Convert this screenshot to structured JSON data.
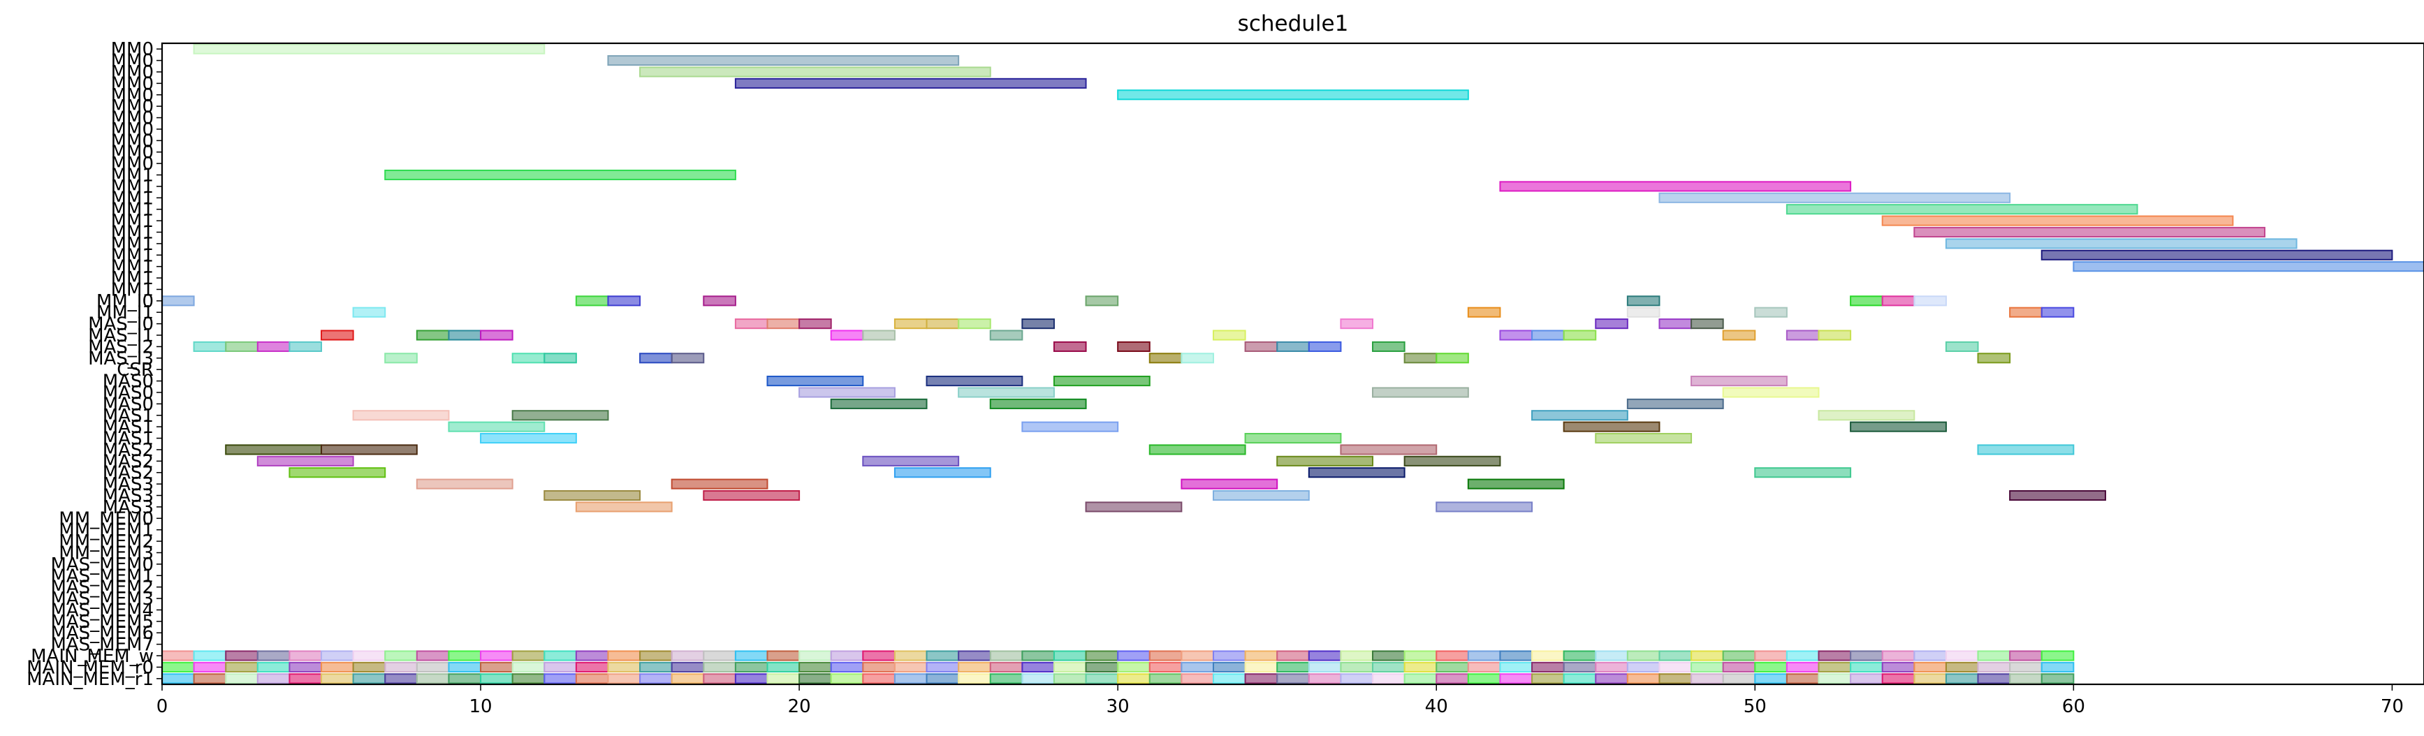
{
  "chart_data": {
    "type": "gantt",
    "title": "schedule1",
    "xlabel": "",
    "ylabel": "",
    "xlim": [
      0,
      71
    ],
    "xticks": [
      0,
      10,
      20,
      30,
      40,
      50,
      60,
      70
    ],
    "grid": false,
    "categories": [
      "MM0",
      "MM0",
      "MM0",
      "MM0",
      "MM0",
      "MM0",
      "MM0",
      "MM0",
      "MM0",
      "MM0",
      "MM0",
      "MM1",
      "MM1",
      "MM1",
      "MM1",
      "MM1",
      "MM1",
      "MM1",
      "MM1",
      "MM1",
      "MM1",
      "MM1",
      "MM_I0",
      "MM_I1",
      "MAS_I0",
      "MAS_I1",
      "MAS_I2",
      "MAS_I3",
      "CSR",
      "MAS0",
      "MAS0",
      "MAS0",
      "MAS1",
      "MAS1",
      "MAS1",
      "MAS2",
      "MAS2",
      "MAS2",
      "MAS3",
      "MAS3",
      "MAS3",
      "MM_MEM0",
      "MM_MEM1",
      "MM_MEM2",
      "MM_MEM3",
      "MAS_MEM0",
      "MAS_MEM1",
      "MAS_MEM2",
      "MAS_MEM3",
      "MAS_MEM4",
      "MAS_MEM5",
      "MAS_MEM6",
      "MAS_MEM7",
      "MAIN_MEM_w",
      "MAIN_MEM_r0",
      "MAIN_MEM_r1"
    ],
    "tasks": [
      {
        "row": 0,
        "start": 1,
        "end": 12,
        "color": "#c8f5c0"
      },
      {
        "row": 1,
        "start": 14,
        "end": 25,
        "color": "#7fa4b8"
      },
      {
        "row": 2,
        "start": 15,
        "end": 26,
        "color": "#a9d98f"
      },
      {
        "row": 3,
        "start": 18,
        "end": 29,
        "color": "#2a239a"
      },
      {
        "row": 4,
        "start": 30,
        "end": 41,
        "color": "#10d8d8"
      },
      {
        "row": 11,
        "start": 7,
        "end": 18,
        "color": "#2fdc50"
      },
      {
        "row": 12,
        "start": 42,
        "end": 53,
        "color": "#dd1ac3"
      },
      {
        "row": 13,
        "start": 47,
        "end": 58,
        "color": "#8cb6e3"
      },
      {
        "row": 14,
        "start": 51,
        "end": 62,
        "color": "#4ed890"
      },
      {
        "row": 15,
        "start": 54,
        "end": 65,
        "color": "#f48750"
      },
      {
        "row": 16,
        "start": 55,
        "end": 66,
        "color": "#c2458f"
      },
      {
        "row": 17,
        "start": 56,
        "end": 67,
        "color": "#6fb7e0"
      },
      {
        "row": 18,
        "start": 59,
        "end": 70,
        "color": "#1d1a7e"
      },
      {
        "row": 19,
        "start": 60,
        "end": 71,
        "color": "#5b93e6"
      },
      {
        "row": 22,
        "start": 0,
        "end": 1,
        "color": "#7da7e0"
      },
      {
        "row": 23,
        "start": 6,
        "end": 7,
        "color": "#7de8f0"
      },
      {
        "row": 22,
        "start": 13,
        "end": 14,
        "color": "#3cd63c"
      },
      {
        "row": 22,
        "start": 14,
        "end": 15,
        "color": "#3d3dd0"
      },
      {
        "row": 22,
        "start": 17,
        "end": 18,
        "color": "#a61e8c"
      },
      {
        "row": 22,
        "start": 29,
        "end": 30,
        "color": "#6aa56a"
      },
      {
        "row": 23,
        "start": 41,
        "end": 42,
        "color": "#e88e1c"
      },
      {
        "row": 22,
        "start": 46,
        "end": 47,
        "color": "#2b7b7b"
      },
      {
        "row": 23,
        "start": 46,
        "end": 47,
        "color": "#e0e0e0"
      },
      {
        "row": 23,
        "start": 50,
        "end": 51,
        "color": "#a7c7bd"
      },
      {
        "row": 22,
        "start": 53,
        "end": 54,
        "color": "#28d828"
      },
      {
        "row": 22,
        "start": 54,
        "end": 55,
        "color": "#e0339e"
      },
      {
        "row": 22,
        "start": 55,
        "end": 56,
        "color": "#c8d8f8"
      },
      {
        "row": 23,
        "start": 58,
        "end": 59,
        "color": "#e8743c"
      },
      {
        "row": 23,
        "start": 59,
        "end": 60,
        "color": "#4a4ae0"
      },
      {
        "row": 24,
        "start": 18,
        "end": 19,
        "color": "#e86aa0"
      },
      {
        "row": 24,
        "start": 19,
        "end": 20,
        "color": "#e07c6c"
      },
      {
        "row": 24,
        "start": 20,
        "end": 21,
        "color": "#a0236a"
      },
      {
        "row": 24,
        "start": 23,
        "end": 24,
        "color": "#d8b23c"
      },
      {
        "row": 24,
        "start": 24,
        "end": 25,
        "color": "#d0b040"
      },
      {
        "row": 24,
        "start": 25,
        "end": 26,
        "color": "#a8e870"
      },
      {
        "row": 24,
        "start": 27,
        "end": 28,
        "color": "#1a2e6e"
      },
      {
        "row": 25,
        "start": 26,
        "end": 27,
        "color": "#6ba890"
      },
      {
        "row": 24,
        "start": 37,
        "end": 38,
        "color": "#f07ad0"
      },
      {
        "row": 24,
        "start": 45,
        "end": 46,
        "color": "#6a2ac0"
      },
      {
        "row": 24,
        "start": 47,
        "end": 48,
        "color": "#9a3cc8"
      },
      {
        "row": 24,
        "start": 48,
        "end": 49,
        "color": "#4a5a4a"
      },
      {
        "row": 25,
        "start": 5,
        "end": 6,
        "color": "#e01818"
      },
      {
        "row": 25,
        "start": 8,
        "end": 9,
        "color": "#34a034"
      },
      {
        "row": 25,
        "start": 9,
        "end": 10,
        "color": "#2a8a9a"
      },
      {
        "row": 25,
        "start": 10,
        "end": 11,
        "color": "#c01ac0"
      },
      {
        "row": 25,
        "start": 21,
        "end": 22,
        "color": "#f030f0"
      },
      {
        "row": 25,
        "start": 22,
        "end": 23,
        "color": "#a8c0a8"
      },
      {
        "row": 25,
        "start": 33,
        "end": 34,
        "color": "#d8f060"
      },
      {
        "row": 25,
        "start": 42,
        "end": 43,
        "color": "#9a48e0"
      },
      {
        "row": 25,
        "start": 43,
        "end": 44,
        "color": "#5a8ae8"
      },
      {
        "row": 25,
        "start": 44,
        "end": 45,
        "color": "#8ae04a"
      },
      {
        "row": 25,
        "start": 51,
        "end": 52,
        "color": "#a85ac8"
      },
      {
        "row": 25,
        "start": 52,
        "end": 53,
        "color": "#c8e050"
      },
      {
        "row": 26,
        "start": 1,
        "end": 2,
        "color": "#60d8c8"
      },
      {
        "row": 26,
        "start": 2,
        "end": 3,
        "color": "#7ac87a"
      },
      {
        "row": 26,
        "start": 3,
        "end": 4,
        "color": "#c830c8"
      },
      {
        "row": 26,
        "start": 4,
        "end": 5,
        "color": "#58c8c8"
      },
      {
        "row": 26,
        "start": 28,
        "end": 29,
        "color": "#9a0a4a"
      },
      {
        "row": 26,
        "start": 30,
        "end": 31,
        "color": "#7a0a1a"
      },
      {
        "row": 26,
        "start": 34,
        "end": 35,
        "color": "#a85a78"
      },
      {
        "row": 26,
        "start": 35,
        "end": 36,
        "color": "#3a8aa8"
      },
      {
        "row": 26,
        "start": 36,
        "end": 37,
        "color": "#3a5ae0"
      },
      {
        "row": 26,
        "start": 38,
        "end": 39,
        "color": "#2aa040"
      },
      {
        "row": 25,
        "start": 49,
        "end": 50,
        "color": "#e0a030"
      },
      {
        "row": 26,
        "start": 56,
        "end": 57,
        "color": "#5ad0a8"
      },
      {
        "row": 27,
        "start": 7,
        "end": 8,
        "color": "#8ae8a8"
      },
      {
        "row": 27,
        "start": 11,
        "end": 12,
        "color": "#50e0b0"
      },
      {
        "row": 27,
        "start": 12,
        "end": 13,
        "color": "#30c8a0"
      },
      {
        "row": 27,
        "start": 15,
        "end": 16,
        "color": "#2848c0"
      },
      {
        "row": 27,
        "start": 16,
        "end": 17,
        "color": "#5a5a8a"
      },
      {
        "row": 27,
        "start": 31,
        "end": 32,
        "color": "#8a7a08"
      },
      {
        "row": 27,
        "start": 32,
        "end": 33,
        "color": "#a0f0e0"
      },
      {
        "row": 27,
        "start": 39,
        "end": 40,
        "color": "#6a8a3a"
      },
      {
        "row": 27,
        "start": 40,
        "end": 41,
        "color": "#60d830"
      },
      {
        "row": 27,
        "start": 57,
        "end": 58,
        "color": "#7a9a1a"
      },
      {
        "row": 29,
        "start": 19,
        "end": 22,
        "color": "#1e58c8"
      },
      {
        "row": 29,
        "start": 24,
        "end": 27,
        "color": "#1a2e7e"
      },
      {
        "row": 29,
        "start": 28,
        "end": 31,
        "color": "#20a020"
      },
      {
        "row": 29,
        "start": 48,
        "end": 51,
        "color": "#c880b8"
      },
      {
        "row": 30,
        "start": 20,
        "end": 23,
        "color": "#a8a0e0"
      },
      {
        "row": 30,
        "start": 25,
        "end": 28,
        "color": "#8ad0c8"
      },
      {
        "row": 30,
        "start": 38,
        "end": 41,
        "color": "#9ab0a0"
      },
      {
        "row": 30,
        "start": 49,
        "end": 52,
        "color": "#e8f890"
      },
      {
        "row": 31,
        "start": 21,
        "end": 24,
        "color": "#1a6a3a"
      },
      {
        "row": 31,
        "start": 26,
        "end": 29,
        "color": "#108a20"
      },
      {
        "row": 31,
        "start": 46,
        "end": 49,
        "color": "#4a6a8a"
      },
      {
        "row": 32,
        "start": 6,
        "end": 9,
        "color": "#f4c0b8"
      },
      {
        "row": 32,
        "start": 11,
        "end": 14,
        "color": "#4a7a4a"
      },
      {
        "row": 32,
        "start": 43,
        "end": 46,
        "color": "#40a0c0"
      },
      {
        "row": 32,
        "start": 52,
        "end": 55,
        "color": "#c8e8a0"
      },
      {
        "row": 33,
        "start": 9,
        "end": 12,
        "color": "#60e0b0"
      },
      {
        "row": 33,
        "start": 27,
        "end": 30,
        "color": "#7aa0f0"
      },
      {
        "row": 33,
        "start": 44,
        "end": 47,
        "color": "#5a3a10"
      },
      {
        "row": 33,
        "start": 53,
        "end": 56,
        "color": "#1a5a3a"
      },
      {
        "row": 34,
        "start": 10,
        "end": 13,
        "color": "#40d0f8"
      },
      {
        "row": 34,
        "start": 34,
        "end": 37,
        "color": "#58d058"
      },
      {
        "row": 34,
        "start": 45,
        "end": 48,
        "color": "#a0d060"
      },
      {
        "row": 35,
        "start": 2,
        "end": 5,
        "color": "#3a4a0a"
      },
      {
        "row": 35,
        "start": 5,
        "end": 8,
        "color": "#4a2a10"
      },
      {
        "row": 35,
        "start": 31,
        "end": 34,
        "color": "#28b828"
      },
      {
        "row": 35,
        "start": 37,
        "end": 40,
        "color": "#b06870"
      },
      {
        "row": 35,
        "start": 57,
        "end": 60,
        "color": "#40c8d8"
      },
      {
        "row": 36,
        "start": 3,
        "end": 6,
        "color": "#b040c0"
      },
      {
        "row": 36,
        "start": 22,
        "end": 25,
        "color": "#6a50c0"
      },
      {
        "row": 36,
        "start": 35,
        "end": 38,
        "color": "#6a8a1a"
      },
      {
        "row": 36,
        "start": 39,
        "end": 42,
        "color": "#3a4a1a"
      },
      {
        "row": 37,
        "start": 4,
        "end": 7,
        "color": "#60c010"
      },
      {
        "row": 37,
        "start": 23,
        "end": 26,
        "color": "#30a0f0"
      },
      {
        "row": 37,
        "start": 36,
        "end": 39,
        "color": "#0a1a6a"
      },
      {
        "row": 37,
        "start": 50,
        "end": 53,
        "color": "#40c890"
      },
      {
        "row": 38,
        "start": 8,
        "end": 11,
        "color": "#e0a090"
      },
      {
        "row": 38,
        "start": 16,
        "end": 19,
        "color": "#c04a30"
      },
      {
        "row": 38,
        "start": 32,
        "end": 35,
        "color": "#d010c0"
      },
      {
        "row": 38,
        "start": 41,
        "end": 44,
        "color": "#0a7a0a"
      },
      {
        "row": 39,
        "start": 12,
        "end": 15,
        "color": "#9a8a40"
      },
      {
        "row": 39,
        "start": 17,
        "end": 20,
        "color": "#c0204a"
      },
      {
        "row": 39,
        "start": 33,
        "end": 36,
        "color": "#80b0e0"
      },
      {
        "row": 39,
        "start": 58,
        "end": 61,
        "color": "#4a0a3a"
      },
      {
        "row": 40,
        "start": 13,
        "end": 16,
        "color": "#e8a070"
      },
      {
        "row": 40,
        "start": 29,
        "end": 32,
        "color": "#7a4a6a"
      },
      {
        "row": 40,
        "start": 40,
        "end": 43,
        "color": "#7880c8"
      }
    ],
    "memory_rows": {
      "rows": [
        53,
        54,
        55
      ],
      "start": 0,
      "end": 60,
      "palette": [
        "#f09090",
        "#f8f0a0",
        "#5030c8",
        "#4a8a3a",
        "#e01870",
        "#a08a30",
        "#c050a0",
        "#60e8f0",
        "#30b860",
        "#c8f0a0",
        "#6060f0",
        "#e0c060",
        "#d0b0d0",
        "#40f040",
        "#8a2a6a",
        "#a0e0f0",
        "#3a7a3a",
        "#e07050",
        "#40a0a0",
        "#c0c0c0",
        "#f040f0",
        "#7070a0",
        "#90e090",
        "#a0f070",
        "#f0a080",
        "#5040a0",
        "#30c0f0",
        "#a0a040",
        "#e080c0",
        "#60d0a0",
        "#f06060",
        "#8080f0",
        "#a0c0a0",
        "#c06040",
        "#40e0c0",
        "#b0b0f0",
        "#e0e040",
        "#70a0e0",
        "#f0b060",
        "#40a060",
        "#c0f0c0",
        "#9040c0",
        "#f0d0f0",
        "#60c060",
        "#4080c0",
        "#d06080",
        "#30d0a0",
        "#c0a0e0",
        "#f09050",
        "#90f090"
      ]
    }
  }
}
